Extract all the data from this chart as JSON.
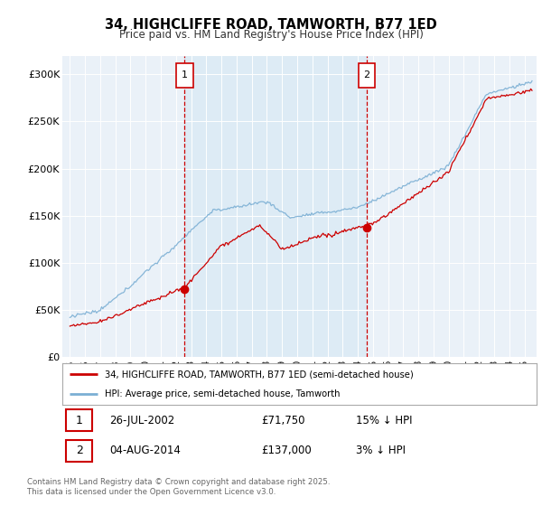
{
  "title_line1": "34, HIGHCLIFFE ROAD, TAMWORTH, B77 1ED",
  "title_line2": "Price paid vs. HM Land Registry's House Price Index (HPI)",
  "legend_label1": "34, HIGHCLIFFE ROAD, TAMWORTH, B77 1ED (semi-detached house)",
  "legend_label2": "HPI: Average price, semi-detached house, Tamworth",
  "footnote": "Contains HM Land Registry data © Crown copyright and database right 2025.\nThis data is licensed under the Open Government Licence v3.0.",
  "sale1_label": "1",
  "sale1_date": "26-JUL-2002",
  "sale1_price": "£71,750",
  "sale1_hpi": "15% ↓ HPI",
  "sale1_x": 2002.57,
  "sale1_y": 71750,
  "sale2_label": "2",
  "sale2_date": "04-AUG-2014",
  "sale2_price": "£137,000",
  "sale2_hpi": "3% ↓ HPI",
  "sale2_x": 2014.59,
  "sale2_y": 137000,
  "vline1_x": 2002.57,
  "vline2_x": 2014.59,
  "red_color": "#cc0000",
  "blue_color": "#7bafd4",
  "shade_color": "#daeaf5",
  "vline_color": "#cc0000",
  "plot_bg": "#eaf1f8",
  "ylim": [
    0,
    320000
  ],
  "yticks": [
    0,
    50000,
    100000,
    150000,
    200000,
    250000,
    300000
  ],
  "ytick_labels": [
    "£0",
    "£50K",
    "£100K",
    "£150K",
    "£200K",
    "£250K",
    "£300K"
  ],
  "xmin": 1994.5,
  "xmax": 2025.8
}
